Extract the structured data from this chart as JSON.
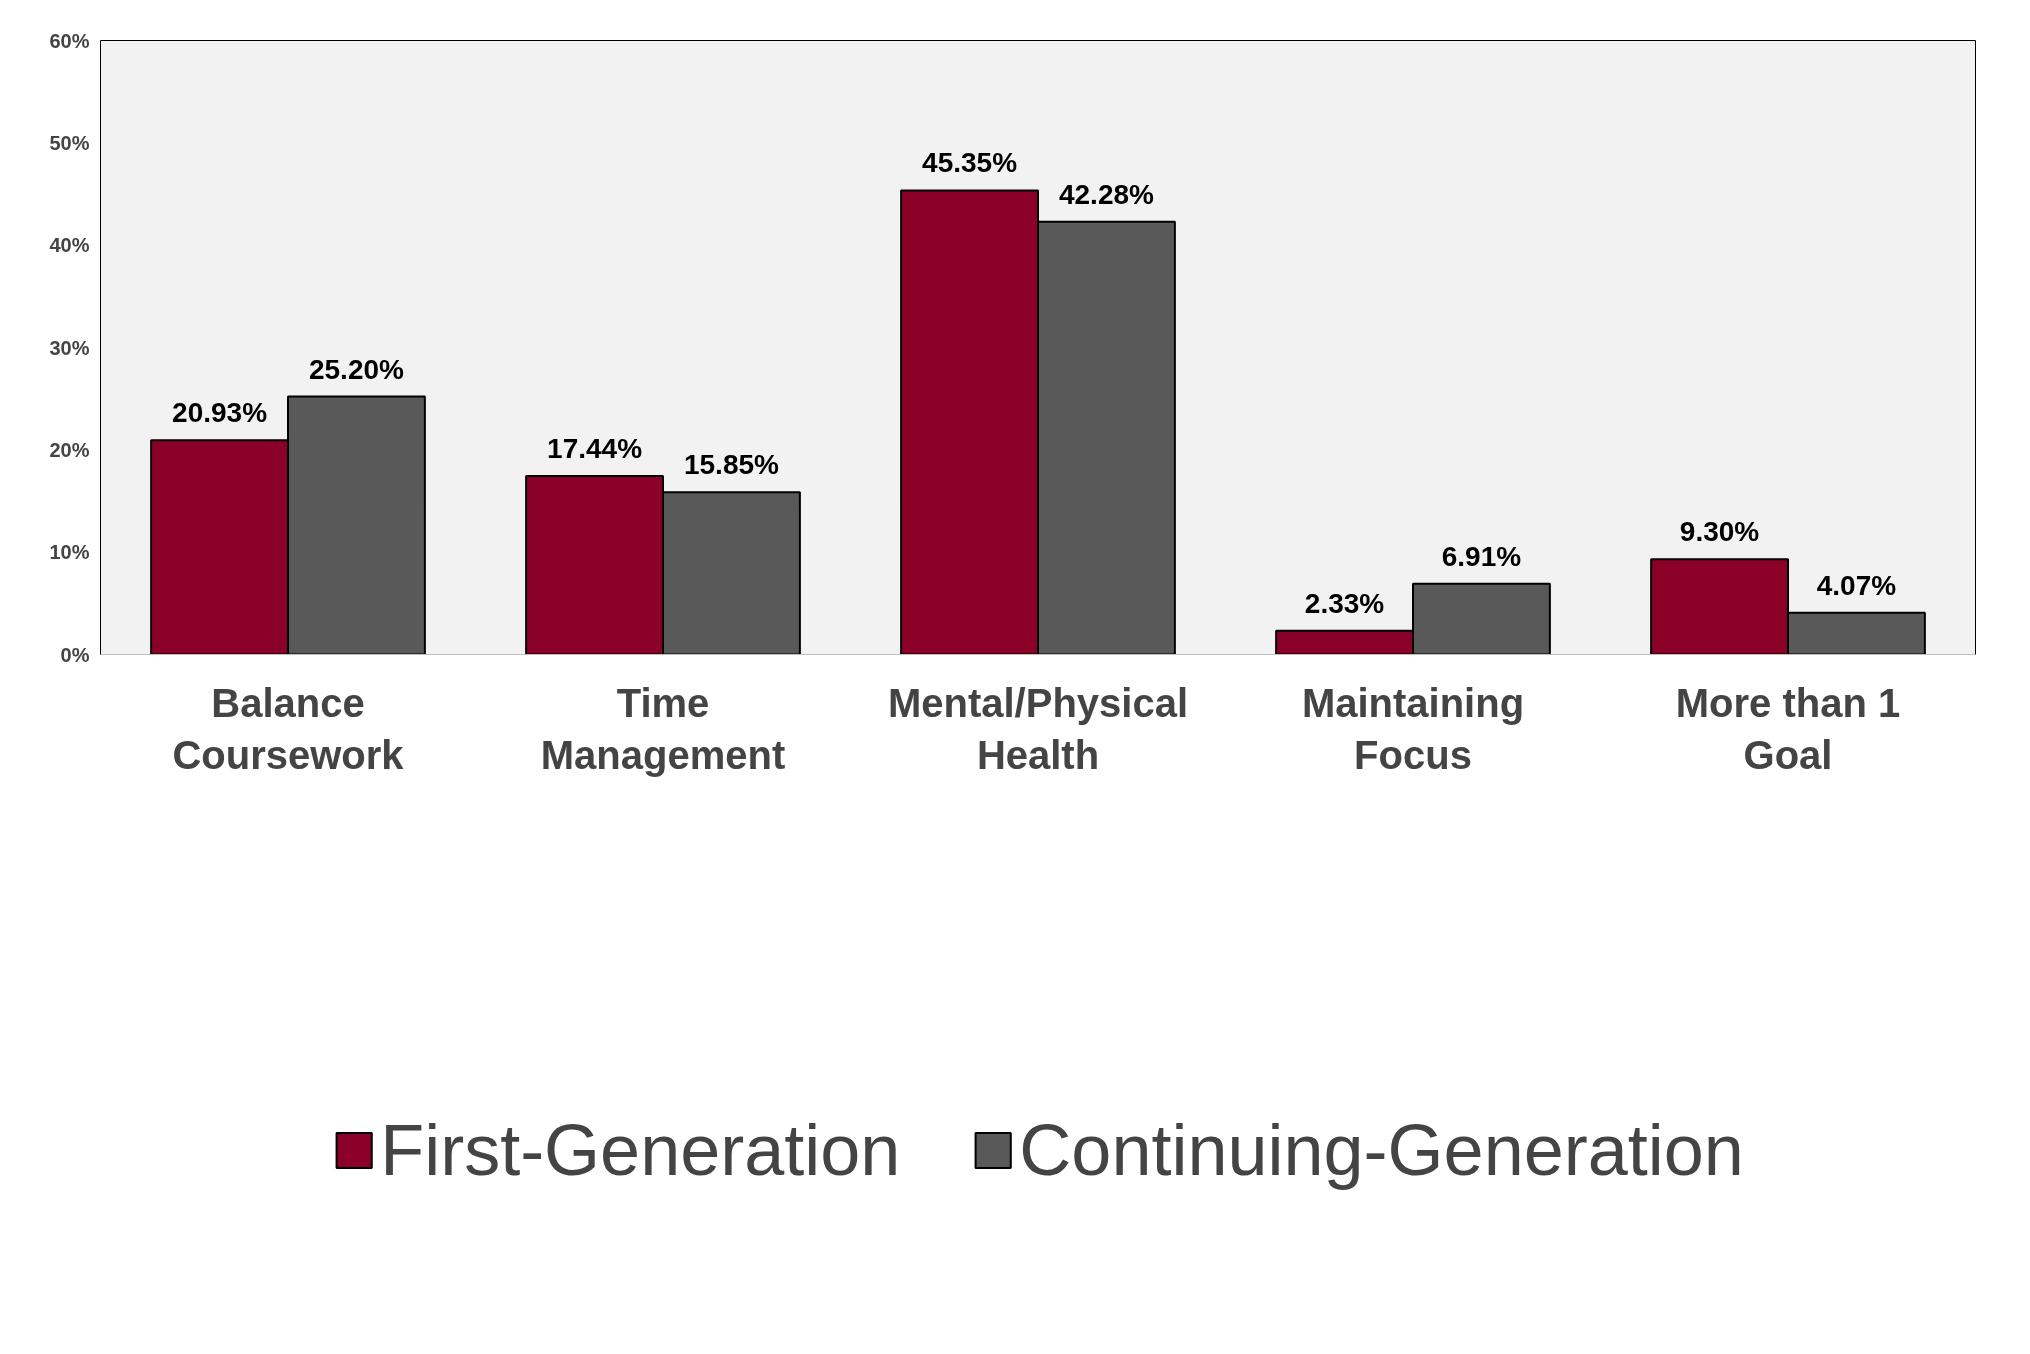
{
  "chart_data": {
    "type": "bar",
    "categories": [
      "Balance Coursework",
      "Time Management",
      "Mental/Physical Health",
      "Maintaining Focus",
      "More than 1 Goal"
    ],
    "series": [
      {
        "name": "First-Generation",
        "color": "#8b0029",
        "values": [
          20.93,
          17.44,
          45.35,
          2.33,
          9.3
        ],
        "value_labels": [
          "20.93%",
          "17.44%",
          "45.35%",
          "2.33%",
          "9.30%"
        ]
      },
      {
        "name": "Continuing-Generation",
        "color": "#595959",
        "values": [
          25.2,
          15.85,
          42.28,
          6.91,
          4.07
        ],
        "value_labels": [
          "25.20%",
          "15.85%",
          "42.28%",
          "6.91%",
          "4.07%"
        ]
      }
    ],
    "ylim": [
      0,
      60
    ],
    "yticks": [
      {
        "value": 0,
        "label": "0%"
      },
      {
        "value": 10,
        "label": "10%"
      },
      {
        "value": 20,
        "label": "20%"
      },
      {
        "value": 30,
        "label": "30%"
      },
      {
        "value": 40,
        "label": "40%"
      },
      {
        "value": 50,
        "label": "50%"
      },
      {
        "value": 60,
        "label": "60%"
      }
    ],
    "grid": false,
    "legend": "bottom"
  }
}
